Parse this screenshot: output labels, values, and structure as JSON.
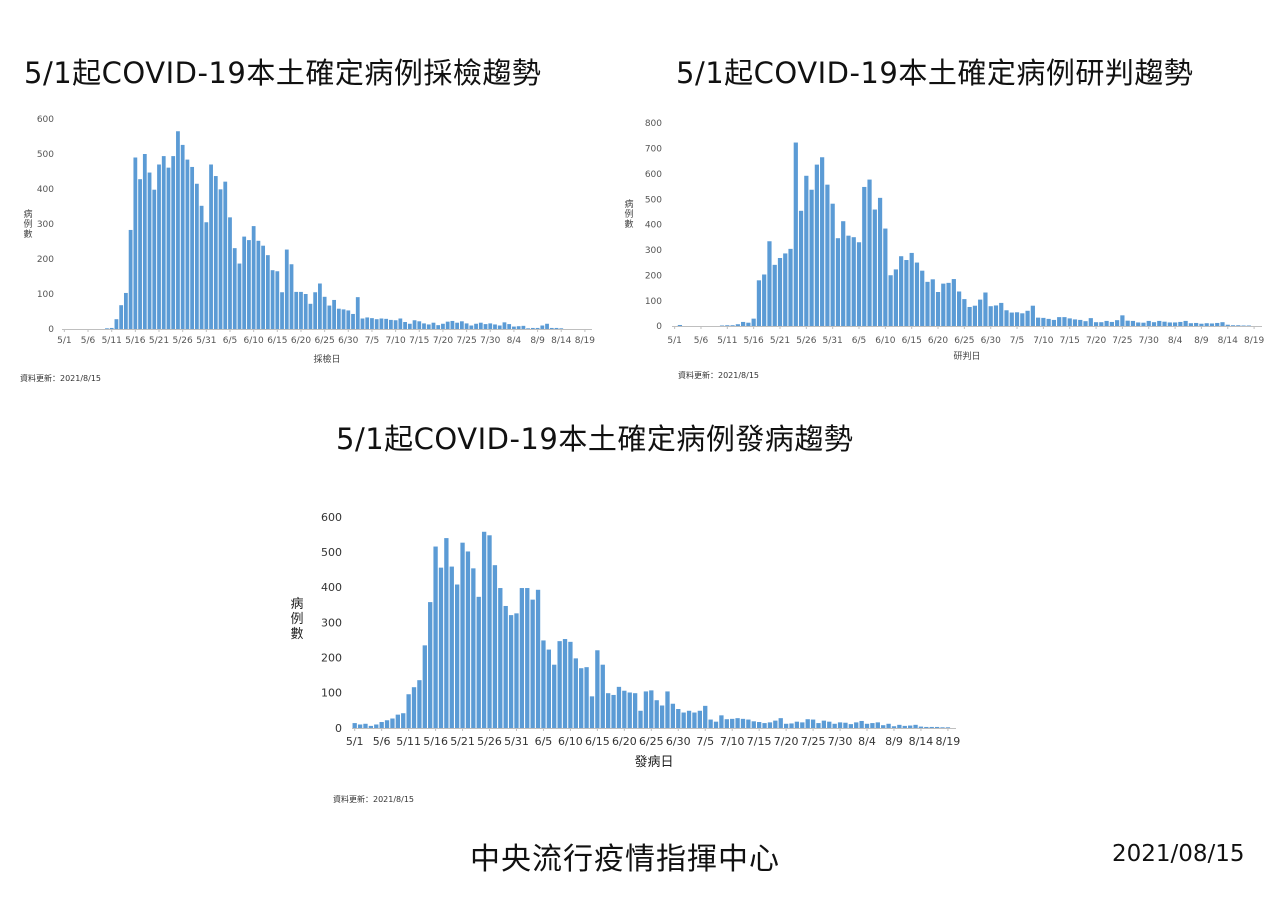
{
  "footer": {
    "org": "中央流行疫情指揮中心",
    "date": "2021/08/15"
  },
  "chart_data": [
    {
      "id": "sampling",
      "type": "bar",
      "title": "5/1起COVID-19本土確定病例採檢趨勢",
      "xlabel": "採檢日",
      "ylabel": [
        "病",
        "例",
        "數"
      ],
      "updated": "資料更新：2021/8/15",
      "ylim": [
        0,
        600
      ],
      "yticks": [
        0,
        100,
        200,
        300,
        400,
        500,
        600
      ],
      "xticks": [
        "5/1",
        "5/6",
        "5/11",
        "5/16",
        "5/21",
        "5/26",
        "5/31",
        "6/5",
        "6/10",
        "6/15",
        "6/20",
        "6/25",
        "6/30",
        "7/5",
        "7/10",
        "7/15",
        "7/20",
        "7/25",
        "7/30",
        "8/4",
        "8/9",
        "8/14",
        "8/19"
      ],
      "color": "#5b9bd5",
      "values": [
        0,
        0,
        0,
        0,
        0,
        0,
        0,
        0,
        0,
        2,
        3,
        28,
        68,
        103,
        283,
        490,
        428,
        500,
        447,
        398,
        470,
        494,
        461,
        494,
        565,
        526,
        484,
        463,
        415,
        352,
        305,
        470,
        437,
        399,
        421,
        319,
        231,
        187,
        264,
        254,
        294,
        252,
        238,
        211,
        168,
        165,
        105,
        227,
        185,
        106,
        106,
        100,
        72,
        105,
        130,
        92,
        67,
        83,
        58,
        56,
        53,
        43,
        91,
        30,
        33,
        31,
        28,
        30,
        29,
        26,
        25,
        30,
        20,
        15,
        25,
        22,
        16,
        13,
        18,
        11,
        15,
        21,
        23,
        18,
        22,
        16,
        10,
        15,
        18,
        14,
        16,
        13,
        10,
        19,
        14,
        7,
        8,
        9,
        2,
        3,
        3,
        10,
        15,
        3,
        3,
        2,
        0,
        0,
        0,
        0,
        0,
        0
      ]
    },
    {
      "id": "confirmation",
      "type": "bar",
      "title": "5/1起COVID-19本土確定病例研判趨勢",
      "xlabel": "研判日",
      "ylabel": [
        "病",
        "例",
        "數"
      ],
      "updated": "資料更新：2021/8/15",
      "ylim": [
        0,
        800
      ],
      "yticks": [
        0,
        100,
        200,
        300,
        400,
        500,
        600,
        700,
        800
      ],
      "xticks": [
        "5/1",
        "5/6",
        "5/11",
        "5/16",
        "5/21",
        "5/26",
        "5/31",
        "6/5",
        "6/10",
        "6/15",
        "6/20",
        "6/25",
        "6/30",
        "7/5",
        "7/10",
        "7/15",
        "7/20",
        "7/25",
        "7/30",
        "8/4",
        "8/9",
        "8/14",
        "8/19"
      ],
      "color": "#5b9bd5",
      "values": [
        0,
        4,
        0,
        0,
        0,
        0,
        0,
        0,
        0,
        2,
        3,
        3,
        7,
        16,
        13,
        29,
        180,
        203,
        334,
        241,
        268,
        286,
        304,
        723,
        454,
        592,
        537,
        636,
        665,
        557,
        482,
        346,
        413,
        356,
        350,
        330,
        548,
        577,
        459,
        505,
        384,
        200,
        223,
        275,
        260,
        288,
        250,
        218,
        174,
        184,
        134,
        167,
        170,
        185,
        136,
        106,
        75,
        80,
        104,
        132,
        78,
        81,
        91,
        62,
        53,
        54,
        50,
        60,
        80,
        33,
        32,
        28,
        24,
        35,
        35,
        30,
        26,
        24,
        19,
        31,
        15,
        15,
        20,
        16,
        23,
        42,
        21,
        20,
        14,
        13,
        20,
        15,
        20,
        17,
        14,
        14,
        16,
        20,
        11,
        12,
        9,
        11,
        10,
        12,
        15,
        5,
        3,
        3,
        2,
        2,
        0,
        0
      ]
    },
    {
      "id": "onset",
      "type": "bar",
      "title": "5/1起COVID-19本土確定病例發病趨勢",
      "xlabel": "發病日",
      "ylabel": [
        "病",
        "例",
        "數"
      ],
      "updated": "資料更新：2021/8/15",
      "ylim": [
        0,
        600
      ],
      "yticks": [
        0,
        100,
        200,
        300,
        400,
        500,
        600
      ],
      "xticks": [
        "5/1",
        "5/6",
        "5/11",
        "5/16",
        "5/21",
        "5/26",
        "5/31",
        "6/5",
        "6/10",
        "6/15",
        "6/20",
        "6/25",
        "6/30",
        "7/5",
        "7/10",
        "7/15",
        "7/20",
        "7/25",
        "7/30",
        "8/4",
        "8/9",
        "8/14",
        "8/19"
      ],
      "color": "#5b9bd5",
      "values": [
        14,
        10,
        12,
        6,
        10,
        17,
        22,
        27,
        38,
        42,
        96,
        116,
        136,
        235,
        358,
        516,
        456,
        540,
        459,
        408,
        527,
        502,
        454,
        373,
        558,
        548,
        463,
        398,
        347,
        321,
        326,
        398,
        398,
        365,
        393,
        249,
        223,
        180,
        247,
        253,
        245,
        198,
        170,
        173,
        90,
        221,
        180,
        99,
        94,
        117,
        106,
        101,
        99,
        49,
        104,
        107,
        79,
        64,
        104,
        69,
        54,
        44,
        49,
        44,
        49,
        63,
        24,
        18,
        36,
        25,
        26,
        28,
        26,
        24,
        19,
        17,
        14,
        16,
        21,
        28,
        12,
        13,
        18,
        16,
        25,
        24,
        14,
        21,
        18,
        12,
        16,
        15,
        11,
        16,
        20,
        12,
        14,
        16,
        8,
        12,
        5,
        9,
        6,
        7,
        9,
        4,
        3,
        3,
        3,
        2,
        2,
        0
      ]
    }
  ]
}
